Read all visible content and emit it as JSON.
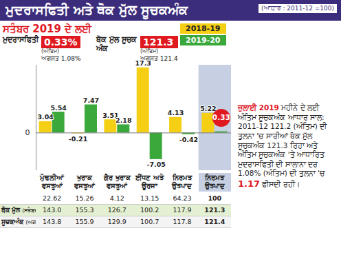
{
  "chart_data": {
    "type": "bar",
    "title": "ਮੁਦਰਾਸਫਿਤੀ ਅਤੇ ਥੋਕ ਮੁੱਲ ਸੂਚਕਅੰਕ",
    "subtitle": "(ਆਧਾਰ : 2011-12 =100)",
    "categories": [
      "ਮੁੱਢਲੀਆਂ ਵਸਤੂਆਂ",
      "ਖੁਰਾਕ ਵਸਤੂਆਂ",
      "ਗੈਰ ਖੁਰਾਕ ਵਸਤੂਆਂ",
      "ਈਂਧਣ ਅਤੇ ਊਰਜਾ",
      "ਨਿਰਮਤ ਉਤਪਾਦ",
      "ਨਿਰਮਤ ਉਤਪਾਦ"
    ],
    "series": [
      {
        "name": "2018-19",
        "color": "#f5cf14",
        "values": [
          3.04,
          -0.21,
          3.51,
          17.3,
          4.13,
          5.22
        ]
      },
      {
        "name": "2019-20",
        "color": "#3aa83a",
        "values": [
          5.54,
          7.47,
          2.18,
          -7.05,
          -0.42,
          0.33
        ]
      }
    ],
    "ylim": [
      -10,
      18
    ],
    "yticks": [
      0
    ],
    "data_labels": true,
    "legend": "top",
    "annotations": {
      "period": "ਸਤੰਬਰ 2019 ਦੇ ਲਈ",
      "inflation": {
        "label": "ਮੁਦਰਾਸਫਿਤੀ",
        "value": "0.33%",
        "note": "(ਅੰਤਿਮ)",
        "previous": "ਅਗਸਤ 1.08%"
      },
      "wpi": {
        "label": "ਥੋਕ ਮੁੱਲ ਸੂਚਕ ਅੰਕ",
        "value": "121.3",
        "note": "(ਅੰਤਿਮ)",
        "previous": "ਅਗਸਤ 121.4"
      },
      "note": {
        "heading": "ਜੁਲਾਈ 2019",
        "text": "ਮਹੀਨੇ ਦੇ ਲਈ ਅੰਤਿਮ ਸੂਚਕਅੰਕ ਆਧਾਰ ਸਾਲ: 2011-12 121.2 (ਅੰਤਿਮ) ਦੀ ਤੁਲਨਾ 'ਚ ਸਾਰੀਆਂ ਥੋਕ ਮੁੱਲ ਸੂਚਕਅੰਕ 121.3 ਰਿਹਾ ਅਤੇ ਅੰਤਿਮ ਸੂਚਕਅੰਕ 'ਤੇ ਆਧਾਰਿਤ ਮੁਦਰਾਸਫਿਤੀ ਦੀ ਸਾਲਾਨਾ ਦਰ 1.08% (ਅੰਤਿਮ) ਦੀ ਤੁਲਨਾ 'ਚ",
        "value": "1.17",
        "end": "ਫੀਸਦੀ ਰਹੀ।"
      }
    },
    "table": {
      "rows": [
        {
          "label": null,
          "note": null,
          "values": [
            "22.62",
            "15.26",
            "4.12",
            "13.15",
            "64.23",
            "100"
          ]
        },
        {
          "label": "ਥੋਕ ਮੁੱਲ",
          "note": "(ਸਤੰਬਰ)",
          "values": [
            "143.0",
            "155.3",
            "126.7",
            "100.2",
            "117.9",
            "121.3"
          ]
        },
        {
          "label": "ਸੂਚਕਅੰਕ",
          "note": "(ਅਗਸਤ)",
          "values": [
            "143.8",
            "155.9",
            "129.9",
            "100.7",
            "117.8",
            "121.4"
          ]
        }
      ]
    }
  }
}
